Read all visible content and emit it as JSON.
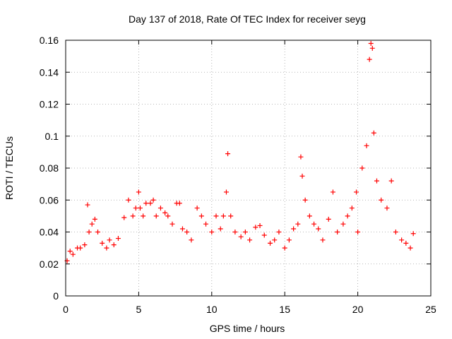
{
  "chart_data": {
    "type": "scatter",
    "title": "Day 137 of 2018, Rate Of TEC Index for receiver seyg",
    "xlabel": "GPS time / hours",
    "ylabel": "ROTI / TECUs",
    "xlim": [
      0,
      25
    ],
    "ylim": [
      0,
      0.16
    ],
    "xticks": [
      "0",
      "5",
      "10",
      "15",
      "20",
      "25"
    ],
    "yticks": [
      "0",
      "0.02",
      "0.04",
      "0.06",
      "0.08",
      "0.1",
      "0.12",
      "0.14",
      "0.16"
    ],
    "grid": true,
    "marker": "+",
    "series": [
      {
        "name": "ROTI",
        "color": "#ff0000",
        "x": [
          0.1,
          0.3,
          0.5,
          0.8,
          1.0,
          1.3,
          1.5,
          1.6,
          1.8,
          2.0,
          2.2,
          2.5,
          2.8,
          3.0,
          3.3,
          3.6,
          4.0,
          4.3,
          4.6,
          4.8,
          5.0,
          5.1,
          5.3,
          5.5,
          5.8,
          6.0,
          6.2,
          6.5,
          6.8,
          7.0,
          7.3,
          7.6,
          7.8,
          8.0,
          8.3,
          8.6,
          9.0,
          9.3,
          9.6,
          10.0,
          10.3,
          10.6,
          10.8,
          11.0,
          11.1,
          11.3,
          11.6,
          12.0,
          12.3,
          12.6,
          13.0,
          13.3,
          13.6,
          14.0,
          14.3,
          14.6,
          15.0,
          15.3,
          15.6,
          15.9,
          16.1,
          16.2,
          16.4,
          16.7,
          17.0,
          17.3,
          17.6,
          18.0,
          18.3,
          18.6,
          19.0,
          19.3,
          19.6,
          19.9,
          20.0,
          20.3,
          20.6,
          20.8,
          20.9,
          21.0,
          21.1,
          21.3,
          21.6,
          22.0,
          22.3,
          22.6,
          23.0,
          23.3,
          23.6,
          23.8
        ],
        "y": [
          0.022,
          0.028,
          0.026,
          0.03,
          0.03,
          0.032,
          0.057,
          0.04,
          0.045,
          0.048,
          0.04,
          0.033,
          0.03,
          0.035,
          0.032,
          0.036,
          0.049,
          0.06,
          0.05,
          0.055,
          0.065,
          0.055,
          0.05,
          0.058,
          0.058,
          0.06,
          0.05,
          0.055,
          0.052,
          0.05,
          0.045,
          0.058,
          0.058,
          0.042,
          0.04,
          0.035,
          0.055,
          0.05,
          0.045,
          0.04,
          0.05,
          0.042,
          0.05,
          0.065,
          0.089,
          0.05,
          0.04,
          0.037,
          0.04,
          0.035,
          0.043,
          0.044,
          0.038,
          0.033,
          0.035,
          0.04,
          0.03,
          0.035,
          0.042,
          0.045,
          0.087,
          0.075,
          0.06,
          0.05,
          0.045,
          0.042,
          0.035,
          0.048,
          0.065,
          0.04,
          0.045,
          0.05,
          0.055,
          0.065,
          0.04,
          0.08,
          0.094,
          0.148,
          0.158,
          0.155,
          0.102,
          0.072,
          0.06,
          0.055,
          0.072,
          0.04,
          0.035,
          0.033,
          0.03,
          0.039
        ]
      }
    ]
  }
}
